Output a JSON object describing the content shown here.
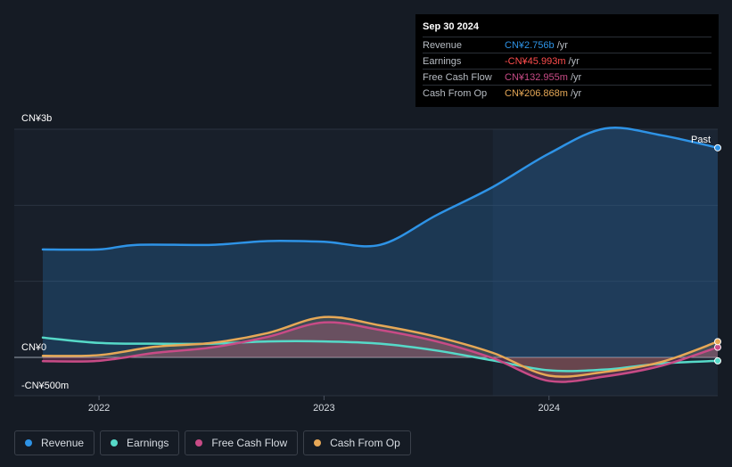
{
  "chart_data": {
    "type": "area",
    "ylabels": [
      "CN¥3b",
      "CN¥0",
      "-CN¥500m"
    ],
    "yvals": [
      3000,
      0,
      -500
    ],
    "ylim": [
      -500,
      3000
    ],
    "xlim": [
      2021.75,
      2024.75
    ],
    "xticks": [
      {
        "label": "2022",
        "value": 2022.0
      },
      {
        "label": "2023",
        "value": 2023.0
      },
      {
        "label": "2024",
        "value": 2024.0
      }
    ],
    "past_label": "Past",
    "past_start": 2023.75,
    "series": [
      {
        "name": "Revenue",
        "color": "#2e93e6",
        "fill": true,
        "x": [
          2021.75,
          2022.0,
          2022.17,
          2022.5,
          2022.75,
          2023.0,
          2023.25,
          2023.5,
          2023.75,
          2024.0,
          2024.25,
          2024.5,
          2024.75
        ],
        "y": [
          1420,
          1420,
          1480,
          1480,
          1530,
          1520,
          1480,
          1870,
          2240,
          2680,
          3010,
          2920,
          2756
        ]
      },
      {
        "name": "Earnings",
        "color": "#56d9c8",
        "fill": false,
        "x": [
          2021.75,
          2022.0,
          2022.25,
          2022.5,
          2022.75,
          2023.0,
          2023.25,
          2023.5,
          2023.75,
          2024.0,
          2024.25,
          2024.5,
          2024.75
        ],
        "y": [
          260,
          190,
          180,
          180,
          210,
          210,
          180,
          90,
          -40,
          -170,
          -160,
          -80,
          -45.993
        ]
      },
      {
        "name": "Free Cash Flow",
        "color": "#c84b86",
        "fill": true,
        "x": [
          2021.75,
          2022.0,
          2022.25,
          2022.5,
          2022.75,
          2023.0,
          2023.25,
          2023.5,
          2023.75,
          2024.0,
          2024.25,
          2024.5,
          2024.75
        ],
        "y": [
          -50,
          -45,
          60,
          130,
          270,
          460,
          360,
          210,
          -10,
          -310,
          -250,
          -110,
          132.955
        ]
      },
      {
        "name": "Cash From Op",
        "color": "#e6a857",
        "fill": true,
        "x": [
          2021.75,
          2022.0,
          2022.25,
          2022.5,
          2022.75,
          2023.0,
          2023.25,
          2023.5,
          2023.75,
          2024.0,
          2024.25,
          2024.5,
          2024.75
        ],
        "y": [
          20,
          30,
          140,
          190,
          320,
          530,
          420,
          270,
          60,
          -240,
          -190,
          -60,
          206.868
        ]
      }
    ]
  },
  "tooltip": {
    "date": "Sep 30 2024",
    "rows": [
      {
        "label": "Revenue",
        "value": "CN¥2.756b",
        "unit": " /yr",
        "color": "#2e93e6"
      },
      {
        "label": "Earnings",
        "value": "-CN¥45.993m",
        "unit": " /yr",
        "color": "#ff4d4d"
      },
      {
        "label": "Free Cash Flow",
        "value": "CN¥132.955m",
        "unit": " /yr",
        "color": "#c84b86"
      },
      {
        "label": "Cash From Op",
        "value": "CN¥206.868m",
        "unit": " /yr",
        "color": "#e6a857"
      }
    ]
  },
  "legend": [
    {
      "label": "Revenue",
      "color": "#2e93e6"
    },
    {
      "label": "Earnings",
      "color": "#56d9c8"
    },
    {
      "label": "Free Cash Flow",
      "color": "#c84b86"
    },
    {
      "label": "Cash From Op",
      "color": "#e6a857"
    }
  ]
}
